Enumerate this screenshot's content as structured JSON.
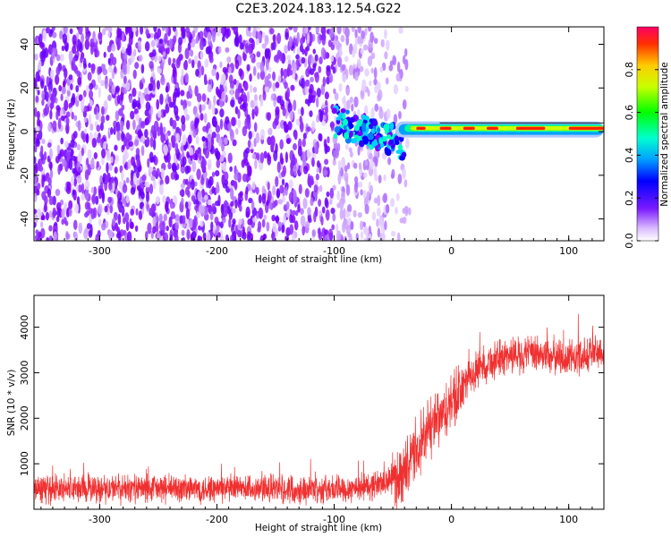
{
  "title": "C2E3.2024.183.12.54.G22",
  "chart_data": [
    {
      "type": "heatmap",
      "name": "spectrogram",
      "xlabel": "Height of straight line (km)",
      "ylabel": "Frequency (Hz)",
      "xlim": [
        -356,
        130
      ],
      "ylim": [
        -50,
        48
      ],
      "xticks": [
        -300,
        -200,
        -100,
        0,
        100
      ],
      "yticks": [
        -40,
        -20,
        0,
        20,
        40
      ],
      "colorbar": {
        "label": "Normalized spectral amplitude",
        "range": [
          0,
          1
        ],
        "ticks": [
          "0.0",
          "0.2",
          "0.4",
          "0.6",
          "0.8"
        ],
        "tick_values": [
          0,
          0.2,
          0.4,
          0.6,
          0.8
        ]
      },
      "features": [
        {
          "description_range_km": [
            -356,
            -100
          ],
          "level": "noise, amplitude ~0.1-0.15"
        },
        {
          "description_range_km": [
            -100,
            -35
          ],
          "level": "transition, signal emerging near 0 Hz"
        },
        {
          "description_range_km": [
            -35,
            130
          ],
          "level": "strong tone at ~0-2 Hz, amplitude up to 1.0"
        }
      ]
    },
    {
      "type": "line",
      "name": "snr",
      "xlabel": "Height of straight line (km)",
      "ylabel": "SNR (10 * v/v)",
      "xlim": [
        -356,
        130
      ],
      "ylim": [
        0,
        4700
      ],
      "xticks": [
        -300,
        -200,
        -100,
        0,
        100
      ],
      "yticks": [
        1000,
        2000,
        3000,
        4000
      ],
      "color": "#f03030",
      "series_profile": [
        {
          "x": -356,
          "y": 450
        },
        {
          "x": -250,
          "y": 450
        },
        {
          "x": -100,
          "y": 440
        },
        {
          "x": -70,
          "y": 500
        },
        {
          "x": -45,
          "y": 700
        },
        {
          "x": -30,
          "y": 1200
        },
        {
          "x": -20,
          "y": 1700
        },
        {
          "x": -5,
          "y": 2100
        },
        {
          "x": 10,
          "y": 2700
        },
        {
          "x": 25,
          "y": 3150
        },
        {
          "x": 50,
          "y": 3400
        },
        {
          "x": 80,
          "y": 3400
        },
        {
          "x": 100,
          "y": 3300
        },
        {
          "x": 130,
          "y": 3500
        }
      ]
    }
  ]
}
